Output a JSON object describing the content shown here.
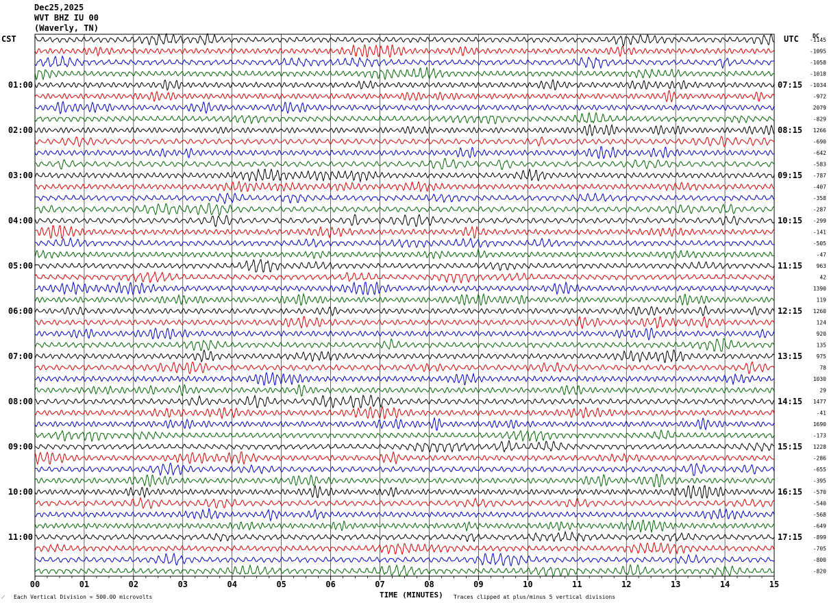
{
  "header": {
    "date": "Dec25,2025",
    "station": "WVT BHZ IU 00",
    "location": "(Waverly, TN)"
  },
  "left_tz": "CST",
  "right_tz": "UTC",
  "dc_label": "DC",
  "colors": {
    "trace_cycle": [
      "#000000",
      "#dd0000",
      "#0000cc",
      "#006600"
    ],
    "grid": "#000000"
  },
  "chart_data": {
    "type": "line",
    "title": "",
    "xlabel": "TIME (MINUTES)",
    "x_ticks": [
      "00",
      "01",
      "02",
      "03",
      "04",
      "05",
      "06",
      "07",
      "08",
      "09",
      "10",
      "11",
      "12",
      "13",
      "14",
      "15"
    ],
    "xlim": [
      0,
      15
    ],
    "n_traces": 48,
    "traces_per_hour": 4,
    "left_hour_labels": [
      "01:00",
      "02:00",
      "03:00",
      "04:00",
      "05:00",
      "06:00",
      "07:00",
      "08:00",
      "09:00",
      "10:00",
      "11:00"
    ],
    "right_hour_labels": [
      "07:15",
      "08:15",
      "09:15",
      "10:15",
      "11:15",
      "12:15",
      "13:15",
      "14:15",
      "15:15",
      "16:15",
      "17:15"
    ],
    "dc_offsets": [
      "-1145",
      "-1095",
      "-1058",
      "-1018",
      "-1034",
      "-972",
      "2079",
      "-829",
      "1266",
      "-690",
      "-642",
      "-583",
      "-787",
      "-407",
      "-358",
      "-287",
      "-299",
      "-141",
      "-505",
      "-47",
      "963",
      "42",
      "1390",
      "119",
      "1260",
      "124",
      "920",
      "135",
      "975",
      "78",
      "1030",
      "29",
      "1477",
      "-41",
      "1690",
      "-173",
      "1228",
      "-286",
      "-655",
      "-395",
      "-570",
      "-540",
      "-568",
      "-649",
      "-899",
      "-705",
      "-800",
      "-820"
    ],
    "notes": {
      "scale": "Each Vertical Division =  500.00 microvolts",
      "clip": "Traces clipped at plus/minus 5 vertical divisions"
    }
  }
}
